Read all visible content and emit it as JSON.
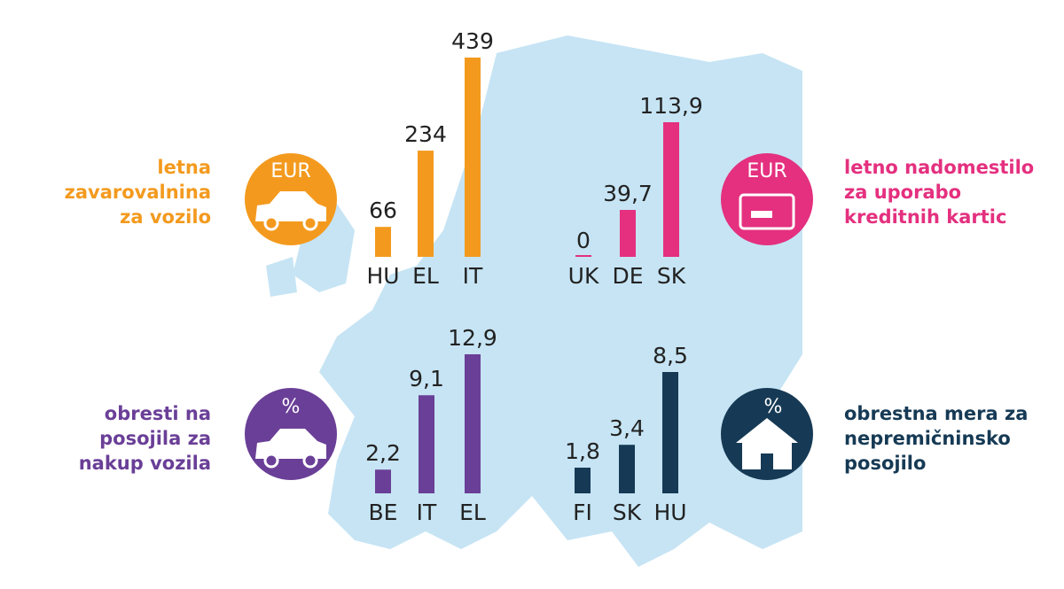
{
  "chart_data": [
    {
      "type": "bar",
      "title": [
        "letna",
        "zavarovalnina",
        "za vozilo"
      ],
      "icon_label": "EUR",
      "color": "#f39a1e",
      "categories": [
        "HU",
        "EL",
        "IT"
      ],
      "values": [
        66,
        234,
        439
      ]
    },
    {
      "type": "bar",
      "title": [
        "letno nadomestilo",
        "za uporabo",
        "kreditnih kartic"
      ],
      "icon_label": "EUR",
      "color": "#e4307f",
      "categories": [
        "UK",
        "DE",
        "SK"
      ],
      "values": [
        0,
        39.7,
        113.9
      ],
      "value_labels": [
        "0",
        "39,7",
        "113,9"
      ]
    },
    {
      "type": "bar",
      "title": [
        "obresti na",
        "posojila za",
        "nakup vozila"
      ],
      "icon_label": "%",
      "color": "#6a3f97",
      "categories": [
        "BE",
        "IT",
        "EL"
      ],
      "values": [
        2.2,
        9.1,
        12.9
      ],
      "value_labels": [
        "2,2",
        "9,1",
        "12,9"
      ]
    },
    {
      "type": "bar",
      "title": [
        "obrestna mera za",
        "nepremičninsko",
        "posojilo"
      ],
      "icon_label": "%",
      "color": "#163a55",
      "categories": [
        "FI",
        "SK",
        "HU"
      ],
      "values": [
        1.8,
        3.4,
        8.5
      ],
      "value_labels": [
        "1,8",
        "3,4",
        "8,5"
      ]
    }
  ]
}
